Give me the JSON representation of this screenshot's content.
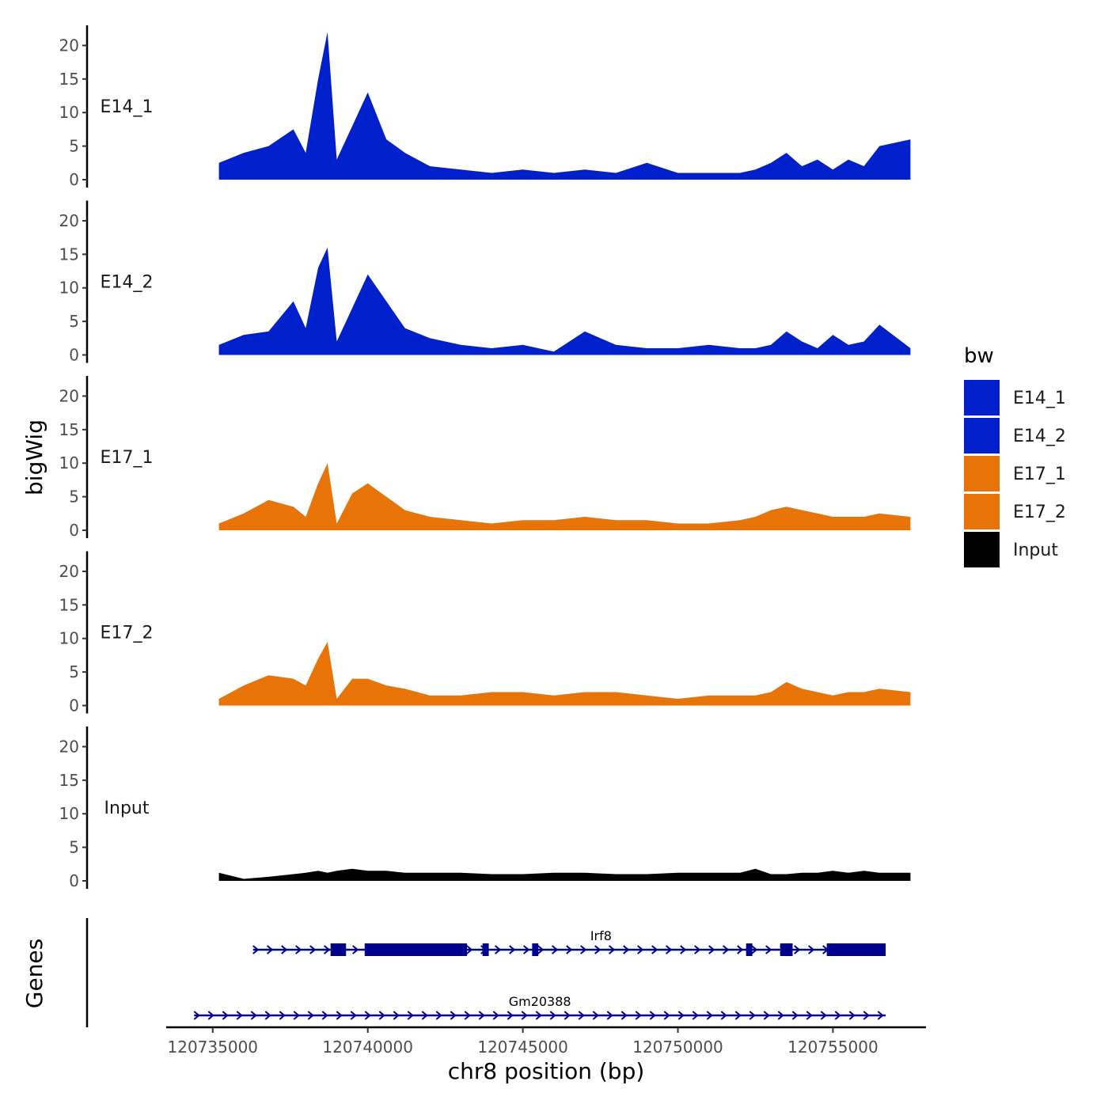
{
  "chart_data": {
    "type": "area",
    "title": "",
    "ylabel": "bigWig",
    "genes_ylabel": "Genes",
    "xlabel": "chr8 position (bp)",
    "xlim": [
      120733500,
      120758000
    ],
    "x_ticks": [
      120735000,
      120740000,
      120745000,
      120750000,
      120755000
    ],
    "x_tick_labels": [
      "120735000",
      "120740000",
      "120745000",
      "120750000",
      "120755000"
    ],
    "ylim": [
      0,
      23
    ],
    "y_ticks": [
      0,
      5,
      10,
      15,
      20
    ],
    "y_tick_labels": [
      "0",
      "5",
      "10",
      "15",
      "20"
    ],
    "legend_title": "bw",
    "legend_position": "right",
    "colors": {
      "E14": "#0020cc",
      "E17": "#e87408",
      "Input": "#000000",
      "gene": "#00008b",
      "axis": "#000000"
    },
    "x": [
      120735200,
      120736000,
      120736800,
      120737600,
      120738000,
      120738400,
      120738700,
      120739000,
      120739500,
      120740000,
      120740600,
      120741200,
      120742000,
      120743000,
      120744000,
      120745000,
      120746000,
      120747000,
      120748000,
      120749000,
      120750000,
      120751000,
      120752000,
      120752500,
      120753000,
      120753500,
      120754000,
      120754500,
      120755000,
      120755500,
      120756000,
      120756500,
      120757500
    ],
    "series": [
      {
        "name": "E14_1",
        "color": "#0020cc",
        "values": [
          2.5,
          4,
          5,
          7.5,
          4,
          15,
          22,
          3,
          8,
          13,
          6,
          4,
          2,
          1.5,
          1,
          1.5,
          1,
          1.5,
          1,
          2.5,
          1,
          1,
          1,
          1.5,
          2.5,
          4,
          2,
          3,
          1.5,
          3,
          2,
          5,
          6
        ]
      },
      {
        "name": "E14_2",
        "color": "#0020cc",
        "values": [
          1.5,
          3,
          3.5,
          8,
          4,
          13,
          16,
          2,
          7,
          12,
          8,
          4,
          2.5,
          1.5,
          1,
          1.5,
          0.5,
          3.5,
          1.5,
          1,
          1,
          1.5,
          1,
          1,
          1.5,
          3.5,
          2,
          1,
          3,
          1.5,
          2,
          4.5,
          1
        ]
      },
      {
        "name": "E17_1",
        "color": "#e87408",
        "values": [
          1,
          2.5,
          4.5,
          3.5,
          2,
          7,
          10,
          1,
          5.5,
          7,
          5,
          3,
          2,
          1.5,
          1,
          1.5,
          1.5,
          2,
          1.5,
          1.5,
          1,
          1,
          1.5,
          2,
          3,
          3.5,
          3,
          2.5,
          2,
          2,
          2,
          2.5,
          2
        ]
      },
      {
        "name": "E17_2",
        "color": "#e87408",
        "values": [
          1,
          3,
          4.5,
          4,
          3,
          7,
          9.5,
          1,
          4,
          4,
          3,
          2.5,
          1.5,
          1.5,
          2,
          2,
          1.5,
          2,
          2,
          1.5,
          1,
          1.5,
          1.5,
          1.5,
          2,
          3.5,
          2.5,
          2,
          1.5,
          2,
          2,
          2.5,
          2
        ]
      },
      {
        "name": "Input",
        "color": "#000000",
        "values": [
          1.2,
          0.3,
          0.6,
          1,
          1.2,
          1.5,
          1.2,
          1.5,
          1.8,
          1.5,
          1.5,
          1.2,
          1.2,
          1.2,
          1,
          1,
          1.2,
          1.2,
          1,
          1,
          1.2,
          1.2,
          1.2,
          1.8,
          1,
          1,
          1.2,
          1.2,
          1.5,
          1.2,
          1.5,
          1.2,
          1.2
        ]
      }
    ],
    "panels": [
      "E14_1",
      "E14_2",
      "E17_1",
      "E17_2",
      "Input"
    ],
    "genes": [
      {
        "name": "Irf8",
        "start": 120736300,
        "end": 120756700,
        "strand": "+",
        "exons": [
          [
            120738800,
            120739300
          ],
          [
            120739900,
            120743200
          ],
          [
            120743700,
            120743900
          ],
          [
            120745300,
            120745500
          ],
          [
            120752200,
            120752400
          ],
          [
            120753300,
            120753700
          ],
          [
            120754800,
            120756700
          ]
        ]
      },
      {
        "name": "Gm20388",
        "start": 120734400,
        "end": 120756700,
        "strand": "+",
        "exons": []
      }
    ]
  }
}
